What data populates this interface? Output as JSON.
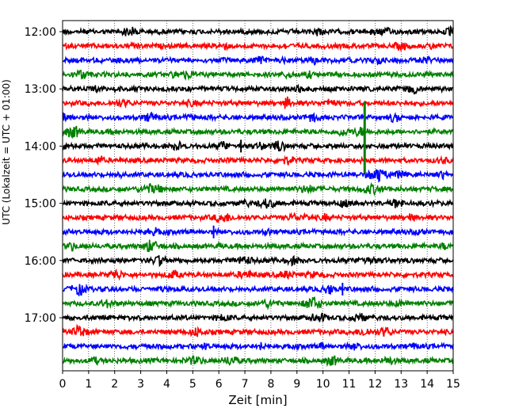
{
  "chart_data": {
    "type": "line",
    "title": "",
    "xlabel": "Zeit  [min]",
    "ylabel": "UTC (Lokalzeit = UTC + 01:00)",
    "xlim": [
      0,
      15
    ],
    "x_ticks": [
      "0",
      "1",
      "2",
      "3",
      "4",
      "5",
      "6",
      "7",
      "8",
      "9",
      "10",
      "11",
      "12",
      "13",
      "14",
      "15"
    ],
    "y_ticks": [
      "12:00",
      "13:00",
      "14:00",
      "15:00",
      "16:00",
      "17:00"
    ],
    "grid": "vertical dotted",
    "trace_interval_minutes": 15,
    "trace_start": "12:00",
    "trace_colors": [
      "#000000",
      "#ff0000",
      "#0000ff",
      "#008000"
    ],
    "traces": [
      {
        "start": "12:00",
        "color": "#000000"
      },
      {
        "start": "12:15",
        "color": "#ff0000"
      },
      {
        "start": "12:30",
        "color": "#0000ff"
      },
      {
        "start": "12:45",
        "color": "#008000"
      },
      {
        "start": "13:00",
        "color": "#000000"
      },
      {
        "start": "13:15",
        "color": "#ff0000"
      },
      {
        "start": "13:30",
        "color": "#0000ff"
      },
      {
        "start": "13:45",
        "color": "#008000"
      },
      {
        "start": "14:00",
        "color": "#000000"
      },
      {
        "start": "14:15",
        "color": "#ff0000"
      },
      {
        "start": "14:30",
        "color": "#0000ff"
      },
      {
        "start": "14:45",
        "color": "#008000"
      },
      {
        "start": "15:00",
        "color": "#000000"
      },
      {
        "start": "15:15",
        "color": "#ff0000"
      },
      {
        "start": "15:30",
        "color": "#0000ff"
      },
      {
        "start": "15:45",
        "color": "#008000"
      },
      {
        "start": "16:00",
        "color": "#000000"
      },
      {
        "start": "16:15",
        "color": "#ff0000"
      },
      {
        "start": "16:30",
        "color": "#0000ff"
      },
      {
        "start": "16:45",
        "color": "#008000"
      },
      {
        "start": "17:00",
        "color": "#000000"
      },
      {
        "start": "17:15",
        "color": "#ff0000"
      },
      {
        "start": "17:30",
        "color": "#0000ff"
      },
      {
        "start": "17:45",
        "color": "#008000"
      }
    ],
    "events": [
      {
        "start": "13:45",
        "minute": 11.6,
        "color": "#008000"
      },
      {
        "start": "14:00",
        "minute": 6.85,
        "color": "#000000"
      },
      {
        "start": "15:30",
        "minute": 5.8,
        "color": "#0000ff"
      },
      {
        "start": "16:30",
        "minute": 10.75,
        "color": "#0000ff"
      }
    ]
  }
}
